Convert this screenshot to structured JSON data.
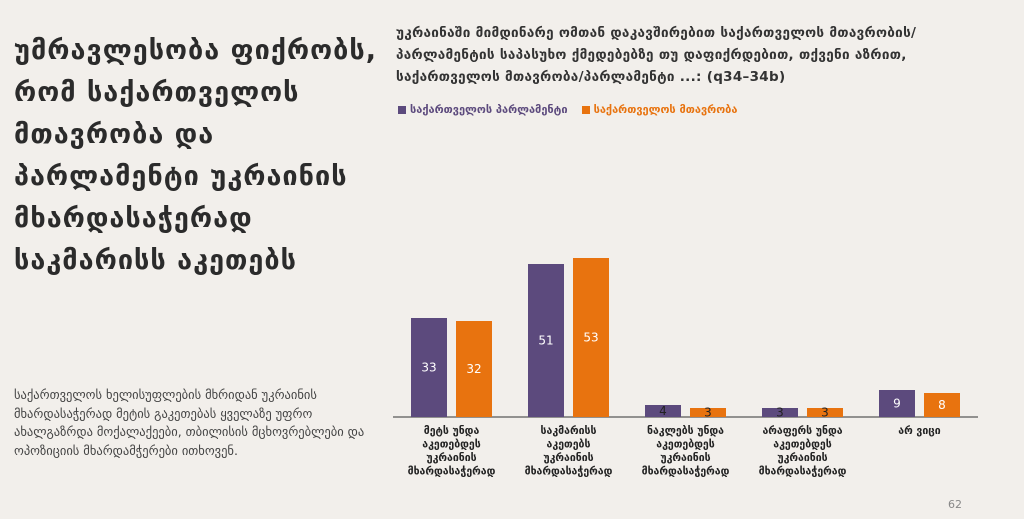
{
  "headline": "უმრავლესობა ფიქრობს, რომ საქართველოს მთავრობა და პარლამენტი უკრაინის მხარდასაჭერად საკმარისს აკეთებს",
  "note": "საქართველოს ხელისუფლების მხრიდან უკრაინის მხარდასაჭერად მეტის გაკეთებას ყველაზე უფრო ახალგაზრდა მოქალაქეები, თბილისის მცხოვრებლები და ოპოზიციის მხარდამჭერები ითხოვენ.",
  "page_number": "62",
  "colors": {
    "parliament": "#5c4a7d",
    "government": "#e8730f"
  },
  "chart_data": {
    "type": "bar",
    "title": "უკრაინაში მიმდინარე ომთან დაკავშირებით საქართველოს მთავრობის/პარლამენტის საპასუხო ქმედებებზე თუ დაფიქრდებით, თქვენი აზრით, საქართველოს მთავრობა/პარლამენტი ...: (q34–34b)",
    "categories": [
      "მეტს უნდა აკეთებდეს უკრაინის მხარდასაჭერად",
      "საკმარისს აკეთებს უკრაინის მხარდასაჭერად",
      "ნაკლებს უნდა აკეთებდეს უკრაინის მხარდასაჭერად",
      "არაფერს უნდა აკეთებდეს უკრაინის მხარდასაჭერად",
      "არ ვიცი"
    ],
    "series": [
      {
        "name": "საქართველოს პარლამენტი",
        "values": [
          33,
          51,
          4,
          3,
          9
        ]
      },
      {
        "name": "საქართველოს მთავრობა",
        "values": [
          32,
          53,
          3,
          3,
          8
        ]
      }
    ],
    "ylim": [
      0,
      60
    ],
    "grid": false,
    "legend_position": "top-left"
  }
}
